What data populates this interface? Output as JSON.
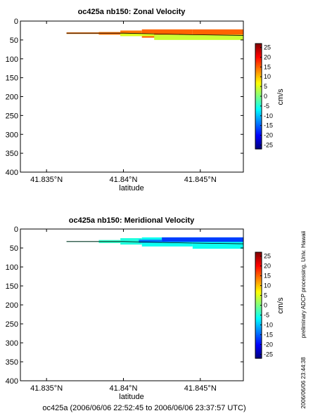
{
  "chart_data": [
    {
      "type": "heatmap",
      "title": "oc425a nb150: Zonal Velocity",
      "xlabel": "latitude",
      "ylabel": "",
      "xlim": [
        41.8333,
        41.8478
      ],
      "ylim": [
        400,
        0
      ],
      "y_reversed": true,
      "xticks": [
        41.835,
        41.84,
        41.845
      ],
      "xtick_labels": [
        "41.835°N",
        "41.84°N",
        "41.845°N"
      ],
      "yticks": [
        0,
        50,
        100,
        150,
        200,
        250,
        300,
        350,
        400
      ],
      "ytick_labels": [
        "0",
        "50",
        "100",
        "150",
        "200",
        "250",
        "300",
        "350",
        "400"
      ],
      "grid": false,
      "colorbar": {
        "label": "cm/s",
        "range": [
          -27,
          27
        ],
        "ticks": [
          25,
          20,
          15,
          10,
          5,
          0,
          -5,
          -10,
          -15,
          -20,
          -25
        ],
        "tick_labels": [
          "25",
          "20",
          "15",
          "10",
          "5",
          "0",
          "-5",
          "-10",
          "-15",
          "-20",
          "-25"
        ]
      },
      "cells": [
        {
          "x0": 41.8363,
          "x1": 41.8384,
          "y0": 30,
          "y1": 34,
          "value": 14
        },
        {
          "x0": 41.8384,
          "x1": 41.8398,
          "y0": 29,
          "y1": 36,
          "value": 14
        },
        {
          "x0": 41.8398,
          "x1": 41.8412,
          "y0": 25,
          "y1": 40,
          "value": 14
        },
        {
          "x0": 41.8412,
          "x1": 41.8445,
          "y0": 22,
          "y1": 44,
          "value": 15
        },
        {
          "x0": 41.8445,
          "x1": 41.8478,
          "y0": 22,
          "y1": 38,
          "value": 15
        },
        {
          "x0": 41.8398,
          "x1": 41.842,
          "y0": 33,
          "y1": 40,
          "value": 5
        },
        {
          "x0": 41.842,
          "x1": 41.8478,
          "y0": 36,
          "y1": 50,
          "value": 4
        }
      ],
      "track": [
        [
          41.8363,
          32
        ],
        [
          41.84,
          32
        ],
        [
          41.842,
          34
        ],
        [
          41.8445,
          36
        ],
        [
          41.8478,
          38
        ]
      ]
    },
    {
      "type": "heatmap",
      "title": "oc425a nb150: Meridional Velocity",
      "xlabel": "latitude",
      "ylabel": "",
      "xlim": [
        41.8333,
        41.8478
      ],
      "ylim": [
        400,
        0
      ],
      "y_reversed": true,
      "xticks": [
        41.835,
        41.84,
        41.845
      ],
      "xtick_labels": [
        "41.835°N",
        "41.84°N",
        "41.845°N"
      ],
      "yticks": [
        0,
        50,
        100,
        150,
        200,
        250,
        300,
        350,
        400
      ],
      "ytick_labels": [
        "0",
        "50",
        "100",
        "150",
        "200",
        "250",
        "300",
        "350",
        "400"
      ],
      "grid": false,
      "colorbar": {
        "label": "cm/s",
        "range": [
          -27,
          27
        ],
        "ticks": [
          25,
          20,
          15,
          10,
          5,
          0,
          -5,
          -10,
          -15,
          -20,
          -25
        ],
        "tick_labels": [
          "25",
          "20",
          "15",
          "10",
          "5",
          "0",
          "-5",
          "-10",
          "-15",
          "-20",
          "-25"
        ]
      },
      "cells": [
        {
          "x0": 41.8363,
          "x1": 41.8384,
          "y0": 32,
          "y1": 34,
          "value": -3
        },
        {
          "x0": 41.8384,
          "x1": 41.8398,
          "y0": 29,
          "y1": 37,
          "value": -4
        },
        {
          "x0": 41.8398,
          "x1": 41.8412,
          "y0": 24,
          "y1": 41,
          "value": -5
        },
        {
          "x0": 41.8412,
          "x1": 41.8445,
          "y0": 22,
          "y1": 46,
          "value": -6
        },
        {
          "x0": 41.8445,
          "x1": 41.8478,
          "y0": 22,
          "y1": 52,
          "value": -6
        },
        {
          "x0": 41.8425,
          "x1": 41.8478,
          "y0": 22,
          "y1": 34,
          "value": -17
        },
        {
          "x0": 41.841,
          "x1": 41.8425,
          "y0": 28,
          "y1": 36,
          "value": -14
        }
      ],
      "track": [
        [
          41.8363,
          33
        ],
        [
          41.84,
          33
        ],
        [
          41.842,
          35
        ],
        [
          41.8445,
          37
        ],
        [
          41.8478,
          39
        ]
      ]
    }
  ],
  "footer": {
    "caption": "oc425a (2006/06/06 22:52:45 to 2006/06/06 23:37:57 UTC)",
    "side_note": "preliminary ADCP processing,  Univ. Hawaii",
    "timestamp": "2006/06/06 23:44:38"
  }
}
